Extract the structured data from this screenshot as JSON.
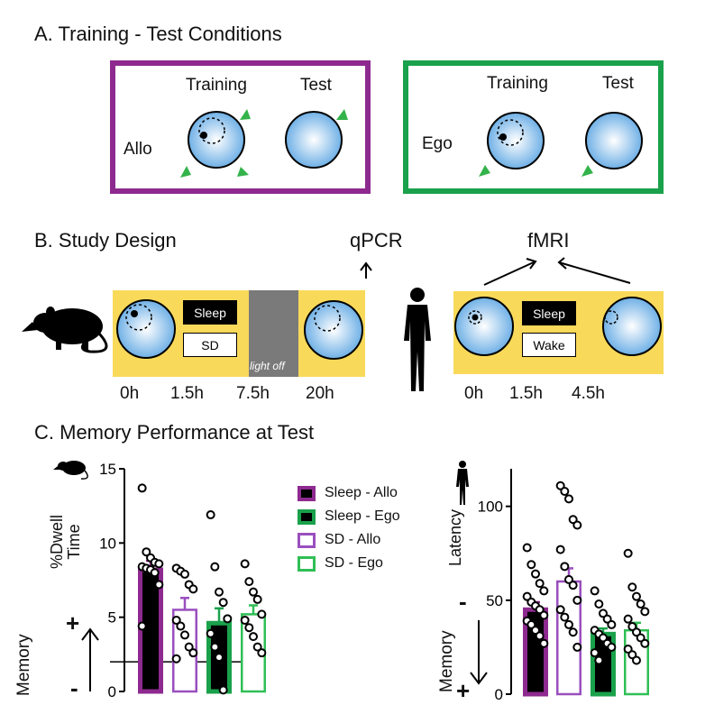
{
  "panel_a": {
    "title": "A. Training - Test Conditions",
    "allo": {
      "condition": "Allo",
      "training": "Training",
      "test": "Test",
      "color": "#8e2a8f"
    },
    "ego": {
      "condition": "Ego",
      "training": "Training",
      "test": "Test",
      "color": "#1aa14b"
    }
  },
  "panel_b": {
    "title": "B. Study Design",
    "qpcr": "qPCR",
    "fmri": "fMRI",
    "rodent": {
      "sleep": "Sleep",
      "sd": "SD",
      "light_off": "light off",
      "times": [
        "0h",
        "1.5h",
        "7.5h",
        "20h"
      ]
    },
    "human": {
      "sleep": "Sleep",
      "wake": "Wake",
      "times": [
        "0h",
        "1.5h",
        "4.5h"
      ]
    }
  },
  "panel_c": {
    "title": "C. Memory Performance at Test",
    "legend": [
      "Sleep - Allo",
      "Sleep - Ego",
      "SD - Allo",
      "SD - Ego"
    ],
    "memory_label": "Memory",
    "plus": "+",
    "minus": "-"
  },
  "colors": {
    "purple": "#8e2a8f",
    "green": "#1aa14b",
    "yellow": "#f8d95a",
    "gray": "#7a7a7a",
    "maze_blue": "#6fb0e6"
  },
  "chart_data": [
    {
      "type": "bar",
      "ylabel": "%Dwell Time",
      "ylim": [
        0,
        15
      ],
      "yticks": [
        "0",
        "5",
        "10",
        "15"
      ],
      "reference_line": 2,
      "categories": [
        "Sleep - Allo",
        "Sleep - Ego",
        "SD - Allo",
        "SD - Ego"
      ],
      "order": [
        "Sleep - Allo",
        "SD - Allo",
        "Sleep - Ego",
        "SD - Ego"
      ],
      "values": [
        8.2,
        4.6,
        5.5,
        5.2
      ],
      "errors": [
        0.6,
        1.0,
        0.8,
        0.6
      ],
      "points": [
        [
          13.7,
          9.4,
          9.0,
          8.7,
          8.6,
          8.4,
          8.3,
          8.2,
          8.0,
          7.2,
          4.4
        ],
        [
          11.9,
          8.4,
          6.7,
          6.0,
          4.9,
          3.9,
          3.0,
          2.3,
          0.1
        ],
        [
          8.3,
          8.1,
          7.9,
          7.2,
          6.9,
          4.8,
          4.4,
          3.8,
          3.0,
          2.6,
          2.2
        ],
        [
          8.6,
          7.4,
          6.7,
          6.2,
          5.2,
          4.8,
          4.3,
          3.7,
          3.0,
          2.6
        ]
      ]
    },
    {
      "type": "bar",
      "ylabel": "Latency",
      "ylim": [
        0,
        120
      ],
      "yticks": [
        "0",
        "50",
        "100"
      ],
      "categories": [
        "Sleep - Allo",
        "SD - Allo",
        "Sleep - Ego",
        "SD - Ego"
      ],
      "order": [
        "Sleep - Allo",
        "SD - Allo",
        "Sleep - Ego",
        "SD - Ego"
      ],
      "values": [
        45,
        60,
        32,
        34
      ],
      "errors": [
        4,
        7,
        3,
        4
      ],
      "points": [
        [
          78,
          69,
          64,
          59,
          55,
          52,
          49,
          47,
          45,
          42,
          39,
          37,
          34,
          31,
          27
        ],
        [
          111,
          108,
          104,
          93,
          90,
          77,
          68,
          61,
          58,
          50,
          45,
          41,
          37,
          33,
          25
        ],
        [
          55,
          48,
          43,
          40,
          37,
          34,
          32,
          30,
          27,
          25,
          22,
          18
        ],
        [
          75,
          57,
          52,
          48,
          44,
          40,
          36,
          33,
          30,
          27,
          24,
          21,
          18
        ]
      ]
    }
  ]
}
